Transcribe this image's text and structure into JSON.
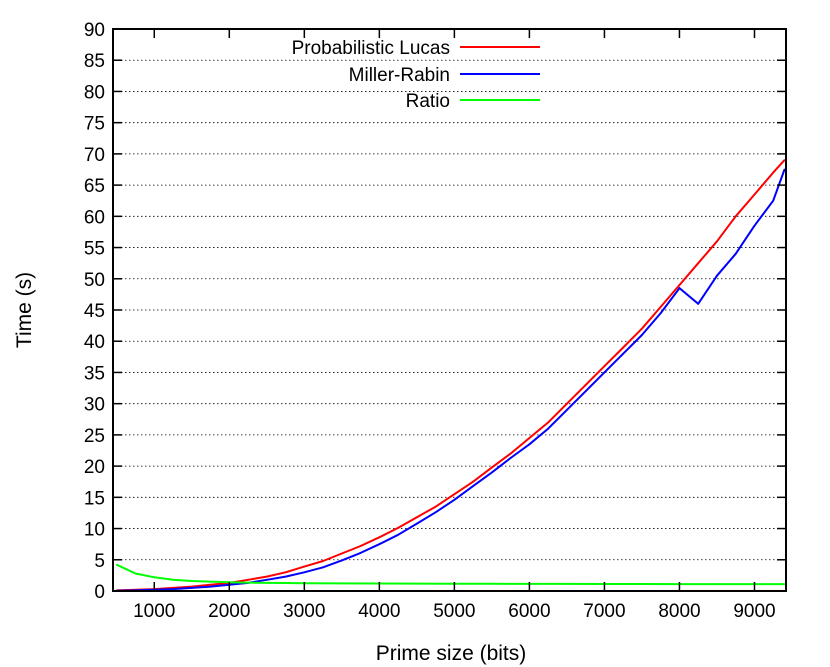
{
  "chart_data": {
    "type": "line",
    "title": "",
    "xlabel": "Prime size (bits)",
    "ylabel": "Time (s)",
    "xlim": [
      450,
      9420
    ],
    "ylim": [
      0,
      90
    ],
    "xticks": [
      1000,
      2000,
      3000,
      4000,
      5000,
      6000,
      7000,
      8000,
      9000
    ],
    "yticks": [
      0,
      5,
      10,
      15,
      20,
      25,
      30,
      35,
      40,
      45,
      50,
      55,
      60,
      65,
      70,
      75,
      80,
      85,
      90
    ],
    "grid": "horizontal dotted",
    "legend_position": "top",
    "series": [
      {
        "name": "Probabilistic Lucas",
        "color": "#ff0000",
        "x": [
          500,
          750,
          1000,
          1250,
          1500,
          1750,
          2000,
          2250,
          2500,
          2750,
          3000,
          3250,
          3500,
          3750,
          4000,
          4250,
          4500,
          4750,
          5000,
          5250,
          5500,
          5750,
          6000,
          6250,
          6500,
          6750,
          7000,
          7250,
          7500,
          7750,
          8000,
          8250,
          8500,
          8750,
          9000,
          9250,
          9400
        ],
        "y": [
          0.1,
          0.2,
          0.3,
          0.5,
          0.7,
          1.0,
          1.3,
          1.8,
          2.3,
          3.0,
          3.9,
          4.8,
          6.0,
          7.2,
          8.6,
          10.1,
          11.8,
          13.5,
          15.5,
          17.5,
          19.8,
          22.0,
          24.5,
          27.0,
          30.0,
          33.0,
          36.0,
          39.0,
          42.0,
          45.5,
          49.0,
          52.5,
          56.0,
          60.0,
          63.5,
          67.0,
          69.0
        ]
      },
      {
        "name": "Miller-Rabin",
        "color": "#0000ff",
        "x": [
          500,
          750,
          1000,
          1250,
          1500,
          1750,
          2000,
          2250,
          2500,
          2750,
          3000,
          3250,
          3500,
          3750,
          4000,
          4250,
          4500,
          4750,
          5000,
          5250,
          5500,
          5750,
          6000,
          6250,
          6500,
          6750,
          7000,
          7250,
          7500,
          7750,
          8000,
          8250,
          8500,
          8750,
          9000,
          9250,
          9400
        ],
        "y": [
          0.05,
          0.1,
          0.2,
          0.3,
          0.5,
          0.7,
          1.0,
          1.3,
          1.8,
          2.3,
          3.0,
          3.8,
          4.9,
          6.1,
          7.5,
          9.0,
          10.8,
          12.6,
          14.6,
          16.8,
          19.0,
          21.3,
          23.5,
          26.0,
          29.0,
          32.0,
          35.0,
          38.0,
          41.0,
          44.5,
          48.5,
          46.0,
          50.5,
          54.0,
          58.5,
          62.5,
          67.5
        ]
      },
      {
        "name": "Ratio",
        "color": "#00ff00",
        "x": [
          500,
          750,
          1000,
          1250,
          1500,
          1750,
          2000,
          2250,
          2500,
          2750,
          3000,
          3500,
          4000,
          4500,
          5000,
          5500,
          6000,
          6500,
          7000,
          7500,
          8000,
          8500,
          9000,
          9400
        ],
        "y": [
          4.2,
          2.8,
          2.2,
          1.8,
          1.6,
          1.5,
          1.4,
          1.35,
          1.3,
          1.28,
          1.25,
          1.22,
          1.2,
          1.18,
          1.16,
          1.15,
          1.14,
          1.13,
          1.12,
          1.12,
          1.11,
          1.1,
          1.1,
          1.1
        ]
      }
    ]
  }
}
